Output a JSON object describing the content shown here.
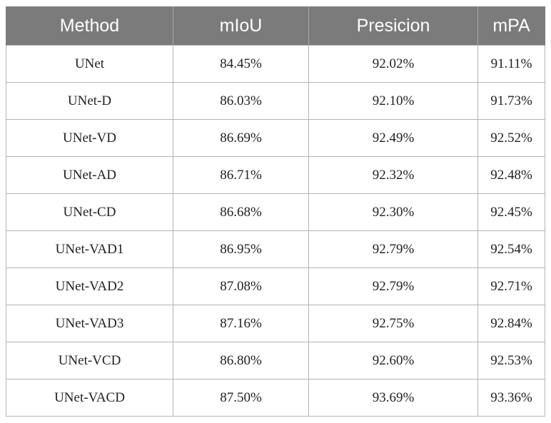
{
  "table": {
    "headers": [
      "Method",
      "mIoU",
      "Presicion",
      "mPA"
    ],
    "rows": [
      [
        "UNet",
        "84.45%",
        "92.02%",
        "91.11%"
      ],
      [
        "UNet-D",
        "86.03%",
        "92.10%",
        "91.73%"
      ],
      [
        "UNet-VD",
        "86.69%",
        "92.49%",
        "92.52%"
      ],
      [
        "UNet-AD",
        "86.71%",
        "92.32%",
        "92.48%"
      ],
      [
        "UNet-CD",
        "86.68%",
        "92.30%",
        "92.45%"
      ],
      [
        "UNet-VAD1",
        "86.95%",
        "92.79%",
        "92.54%"
      ],
      [
        "UNet-VAD2",
        "87.08%",
        "92.79%",
        "92.71%"
      ],
      [
        "UNet-VAD3",
        "87.16%",
        "92.75%",
        "92.84%"
      ],
      [
        "UNet-VCD",
        "86.80%",
        "92.60%",
        "92.53%"
      ],
      [
        "UNet-VACD",
        "87.50%",
        "93.69%",
        "93.36%"
      ]
    ]
  },
  "colors": {
    "header_background": "#7b7b7b",
    "header_text": "#ffffff",
    "cell_border": "#b5b5b5",
    "cell_text": "#222222"
  }
}
